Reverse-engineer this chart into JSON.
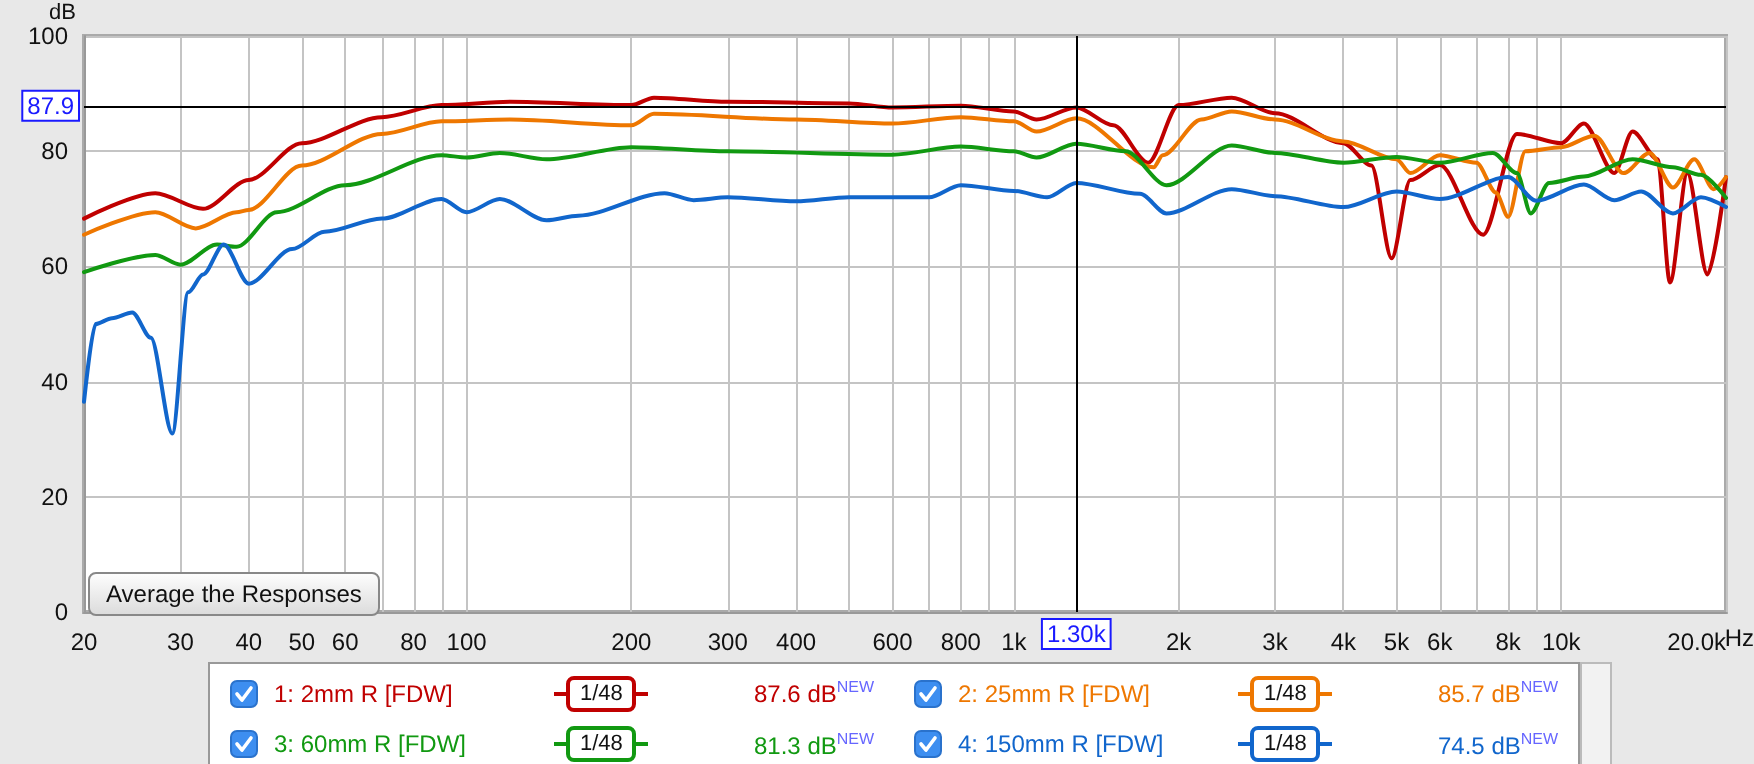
{
  "chart_data": {
    "type": "line",
    "ylabel": "dB",
    "log": "x",
    "grid": true,
    "legend": "bottom",
    "marker": "none",
    "line_style": "solid",
    "xlim": [
      20,
      20000
    ],
    "ylim": [
      0,
      100
    ],
    "xticks": [
      20,
      30,
      40,
      50,
      60,
      {
        "value": 70,
        "label": null
      },
      80,
      {
        "value": 90,
        "label": null
      },
      100,
      200,
      300,
      400,
      {
        "value": 500,
        "label": null
      },
      600,
      {
        "value": 700,
        "label": null
      },
      800,
      {
        "value": 900,
        "label": null
      },
      {
        "value": 1000,
        "label": "1k"
      },
      {
        "value": 2000,
        "label": "2k"
      },
      {
        "value": 3000,
        "label": "3k"
      },
      {
        "value": 4000,
        "label": "4k"
      },
      {
        "value": 5000,
        "label": "5k"
      },
      {
        "value": 6000,
        "label": "6k"
      },
      {
        "value": 7000,
        "label": null
      },
      {
        "value": 8000,
        "label": "8k"
      },
      {
        "value": 9000,
        "label": null
      },
      {
        "value": 10000,
        "label": "10k"
      },
      {
        "value": 20000,
        "label": "20.0k"
      }
    ],
    "xlabel": "Hz",
    "yticks": [
      0,
      20,
      40,
      60,
      80,
      100
    ],
    "ref_lines": [
      {
        "axis": "y",
        "value": 87.9,
        "label": "87.9",
        "color": "#000000"
      },
      {
        "axis": "x",
        "value": 1300,
        "label": "1.30k",
        "color": "#000000"
      }
    ],
    "annotations": [
      "Average the Responses",
      "1/48",
      "1/48",
      "1/48",
      "1/48",
      "87.6 dB$^{NEW}$",
      "85.7 dB$^{NEW}$",
      "81.3 dB$^{NEW}$",
      "74.5 dB$^{NEW}$"
    ],
    "series": [
      {
        "name": "1: 2mm R [FDW]",
        "color": "#c00000",
        "x": [
          20,
          27,
          33,
          40,
          50,
          70,
          90,
          120,
          200,
          220,
          300,
          500,
          600,
          800,
          1000,
          1100,
          1300,
          1520,
          1760,
          2000,
          2500,
          3000,
          4000,
          4500,
          4900,
          5300,
          6000,
          7200,
          8300,
          10000,
          11000,
          12500,
          13500,
          15000,
          15800,
          17000,
          18500,
          20000
        ],
        "values": [
          68.3,
          72.7,
          70,
          75,
          81.4,
          85.9,
          88,
          88.6,
          88,
          89.3,
          88.6,
          88.3,
          87.6,
          87.9,
          86.9,
          85.5,
          87.6,
          84.5,
          78,
          88,
          89.3,
          86.6,
          81.4,
          77.5,
          61.4,
          75,
          77.6,
          65.5,
          83,
          81.4,
          84.8,
          76.2,
          83.4,
          78.6,
          57.2,
          76.2,
          58.6,
          75.5
        ]
      },
      {
        "name": "2: 25mm R [FDW]",
        "color": "#ee7700",
        "x": [
          20,
          27,
          32,
          38,
          40,
          50,
          70,
          90,
          120,
          200,
          220,
          400,
          600,
          800,
          1000,
          1100,
          1300,
          1800,
          1870,
          2200,
          2500,
          3000,
          4000,
          5000,
          5300,
          6000,
          7000,
          7600,
          8000,
          8600,
          10000,
          11500,
          13000,
          14500,
          16000,
          17500,
          19000,
          20000
        ],
        "values": [
          65.5,
          69.4,
          66.6,
          69.4,
          69.8,
          77.5,
          83,
          85.2,
          85.5,
          84.5,
          86.5,
          85.5,
          84.8,
          85.9,
          85.2,
          83.4,
          85.7,
          77.2,
          79.3,
          85.5,
          86.9,
          85.5,
          81.7,
          78.6,
          76.2,
          79.3,
          78,
          72.8,
          68.6,
          80,
          80.7,
          82.7,
          76.2,
          79.7,
          73.7,
          78.6,
          73.4,
          75.5
        ]
      },
      {
        "name": "3: 60mm R [FDW]",
        "color": "#119911",
        "x": [
          20,
          27,
          30,
          35,
          38,
          45,
          60,
          90,
          100,
          115,
          140,
          200,
          300,
          600,
          800,
          1000,
          1100,
          1300,
          1600,
          1900,
          2500,
          3000,
          4000,
          5000,
          6000,
          7500,
          8300,
          8800,
          9500,
          11000,
          13500,
          16000,
          18000,
          20000
        ],
        "values": [
          59,
          62,
          60.3,
          63.8,
          63.4,
          69.4,
          74.1,
          79.3,
          78.9,
          79.7,
          78.6,
          80.7,
          80,
          79.4,
          80.8,
          80,
          78.9,
          81.3,
          80,
          74.1,
          81,
          79.7,
          78,
          79,
          78,
          79.7,
          76.2,
          69.2,
          74.5,
          75.6,
          78.6,
          77.2,
          75.9,
          71.9
        ]
      },
      {
        "name": "4: 150mm R [FDW]",
        "color": "#1166cc",
        "x": [
          20,
          21,
          22.5,
          24.5,
          26.5,
          29,
          31,
          33,
          36,
          40,
          48,
          55,
          70,
          90,
          100,
          115,
          140,
          160,
          230,
          260,
          300,
          400,
          500,
          700,
          800,
          1000,
          1150,
          1300,
          1700,
          1900,
          2500,
          3000,
          4000,
          5000,
          6000,
          8000,
          9000,
          11000,
          12500,
          14000,
          16000,
          18000,
          20000
        ],
        "values": [
          36.5,
          50,
          51,
          52,
          47.6,
          31,
          55.5,
          58.6,
          63.8,
          57,
          63,
          66,
          68.3,
          71.7,
          69.4,
          71.7,
          68,
          68.8,
          72.7,
          71.5,
          72,
          71.3,
          72,
          72,
          74.1,
          73.1,
          72,
          74.5,
          72.6,
          69.2,
          73.4,
          72.2,
          70.3,
          73,
          71.7,
          75.5,
          71.4,
          74.2,
          71.5,
          73,
          69.2,
          72,
          70.3
        ]
      }
    ]
  }
}
